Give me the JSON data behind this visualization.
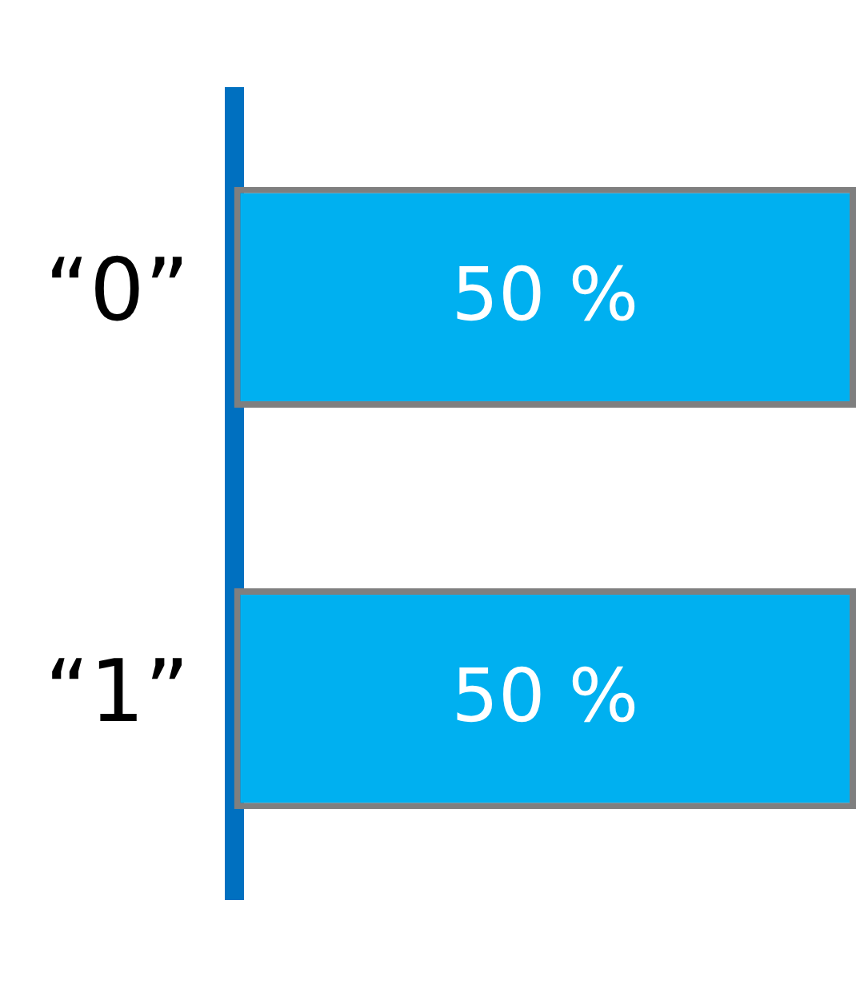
{
  "chart_data": {
    "type": "bar",
    "orientation": "horizontal",
    "categories": [
      "“0”",
      "“1”"
    ],
    "values": [
      50,
      50
    ],
    "value_labels": [
      "50 %",
      "50 %"
    ],
    "color": "#00b0f0",
    "grid": false,
    "legend": false,
    "tick_labels": "y"
  }
}
